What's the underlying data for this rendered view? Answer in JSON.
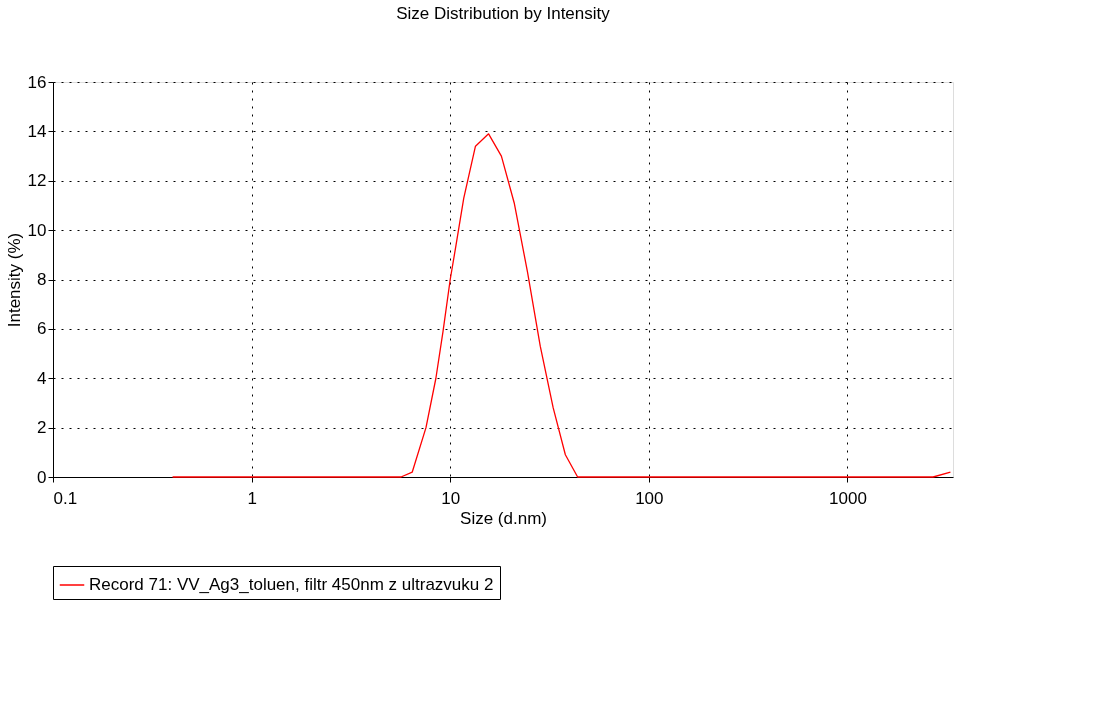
{
  "chart_data": {
    "type": "line",
    "title": "Size Distribution by Intensity",
    "xlabel": "Size (d.nm)",
    "ylabel": "Intensity (%)",
    "x": [
      0.4,
      5.65,
      6.44,
      7.55,
      8.47,
      9.2,
      10,
      10.7,
      11.7,
      13.4,
      15.6,
      18.1,
      21.0,
      24.5,
      28.4,
      33.0,
      38.0,
      43.8,
      1000,
      2700,
      3300
    ],
    "series": [
      {
        "name": "Record 71: VV_Ag3_toluen, filtr 450nm z ultrazvuku 2",
        "color": "#ff0000",
        "values": [
          0,
          0,
          0.2,
          2.0,
          4.0,
          5.9,
          8.0,
          9.4,
          11.3,
          13.4,
          13.9,
          13.0,
          11.1,
          8.3,
          5.3,
          2.8,
          0.9,
          0,
          0,
          0,
          0.2
        ]
      }
    ],
    "log": "x",
    "xlim": [
      0.1,
      3400
    ],
    "xticks": [
      0.1,
      1,
      10,
      100,
      1000
    ],
    "ylim": [
      0,
      16
    ],
    "yticks": [
      0,
      2,
      4,
      6,
      8,
      10,
      12,
      14,
      16
    ],
    "grid": true,
    "legend": "bottom",
    "line_style": "solid",
    "marker": "none"
  }
}
